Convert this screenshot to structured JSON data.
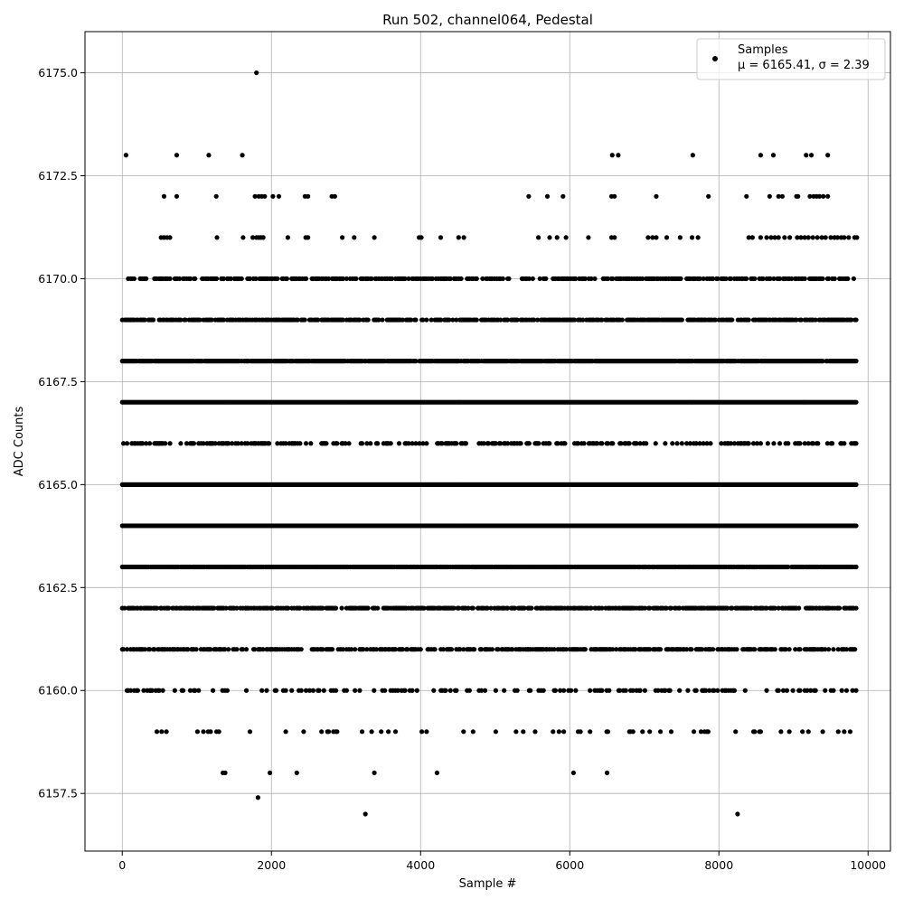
{
  "chart_data": {
    "type": "scatter",
    "title": "Run 502, channel064, Pedestal",
    "xlabel": "Sample #",
    "ylabel": "ADC Counts",
    "xlim": [
      -500,
      10300
    ],
    "ylim": [
      6156.1,
      6176.0
    ],
    "xticks": [
      0,
      2000,
      4000,
      6000,
      8000,
      10000
    ],
    "xtick_labels": [
      "0",
      "2000",
      "4000",
      "6000",
      "8000",
      "10000"
    ],
    "yticks": [
      6157.5,
      6160.0,
      6162.5,
      6165.0,
      6167.5,
      6170.0,
      6172.5,
      6175.0
    ],
    "ytick_labels": [
      "6157.5",
      "6160.0",
      "6162.5",
      "6165.0",
      "6167.5",
      "6170.0",
      "6172.5",
      "6175.0"
    ],
    "grid": true,
    "legend": {
      "position": "top-right",
      "entries": [
        {
          "line1": "Samples",
          "line2": "μ = 6165.41, σ = 2.39"
        }
      ]
    },
    "series": [
      {
        "name": "Samples",
        "marker_color": "#000000",
        "x_range": [
          0,
          9850
        ],
        "points": [
          [
            1800,
            6175
          ],
          [
            50,
            6173
          ],
          [
            730,
            6173
          ],
          [
            1160,
            6173
          ],
          [
            1610,
            6173
          ],
          [
            6570,
            6173
          ],
          [
            6650,
            6173
          ],
          [
            7650,
            6173
          ],
          [
            8560,
            6173
          ],
          [
            8730,
            6173
          ],
          [
            9170,
            6173
          ],
          [
            9240,
            6173
          ],
          [
            9460,
            6173
          ],
          [
            560,
            6172
          ],
          [
            730,
            6172
          ],
          [
            1260,
            6172
          ],
          [
            1780,
            6172
          ],
          [
            1830,
            6172
          ],
          [
            1870,
            6172
          ],
          [
            1910,
            6172
          ],
          [
            2020,
            6172
          ],
          [
            2100,
            6172
          ],
          [
            2450,
            6172
          ],
          [
            2490,
            6172
          ],
          [
            2810,
            6172
          ],
          [
            2850,
            6172
          ],
          [
            5450,
            6172
          ],
          [
            5700,
            6172
          ],
          [
            5910,
            6172
          ],
          [
            6560,
            6172
          ],
          [
            6600,
            6172
          ],
          [
            7160,
            6172
          ],
          [
            7860,
            6172
          ],
          [
            8370,
            6172
          ],
          [
            8680,
            6172
          ],
          [
            8800,
            6172
          ],
          [
            8850,
            6172
          ],
          [
            9040,
            6172
          ],
          [
            9060,
            6172
          ],
          [
            9220,
            6172
          ],
          [
            9270,
            6172
          ],
          [
            9310,
            6172
          ],
          [
            9350,
            6172
          ],
          [
            9400,
            6172
          ],
          [
            9460,
            6172
          ],
          [
            520,
            6171
          ],
          [
            560,
            6171
          ],
          [
            600,
            6171
          ],
          [
            640,
            6171
          ],
          [
            1270,
            6171
          ],
          [
            1620,
            6171
          ],
          [
            1750,
            6171
          ],
          [
            1800,
            6171
          ],
          [
            1830,
            6171
          ],
          [
            1860,
            6171
          ],
          [
            1890,
            6171
          ],
          [
            2220,
            6171
          ],
          [
            2460,
            6171
          ],
          [
            2490,
            6171
          ],
          [
            2950,
            6171
          ],
          [
            3110,
            6171
          ],
          [
            3380,
            6171
          ],
          [
            3980,
            6171
          ],
          [
            4010,
            6171
          ],
          [
            4270,
            6171
          ],
          [
            4510,
            6171
          ],
          [
            4580,
            6171
          ],
          [
            5580,
            6171
          ],
          [
            5730,
            6171
          ],
          [
            5830,
            6171
          ],
          [
            5950,
            6171
          ],
          [
            6250,
            6171
          ],
          [
            6560,
            6171
          ],
          [
            6600,
            6171
          ],
          [
            7050,
            6171
          ],
          [
            7110,
            6171
          ],
          [
            7160,
            6171
          ],
          [
            7300,
            6171
          ],
          [
            7480,
            6171
          ],
          [
            7640,
            6171
          ],
          [
            7720,
            6171
          ],
          [
            8400,
            6171
          ],
          [
            8450,
            6171
          ],
          [
            8560,
            6171
          ],
          [
            8640,
            6171
          ],
          [
            8700,
            6171
          ],
          [
            8750,
            6171
          ],
          [
            8800,
            6171
          ],
          [
            8880,
            6171
          ],
          [
            8950,
            6171
          ],
          [
            9050,
            6171
          ],
          [
            9100,
            6171
          ],
          [
            9150,
            6171
          ],
          [
            9200,
            6171
          ],
          [
            9260,
            6171
          ],
          [
            9320,
            6171
          ],
          [
            9380,
            6171
          ],
          [
            9430,
            6171
          ],
          [
            9500,
            6171
          ],
          [
            9550,
            6171
          ],
          [
            9590,
            6171
          ],
          [
            9640,
            6171
          ],
          [
            9680,
            6171
          ],
          [
            9740,
            6171
          ],
          [
            9820,
            6171
          ],
          [
            9850,
            6171
          ],
          [
            1820,
            6157.4
          ],
          [
            3260,
            6157
          ],
          [
            8250,
            6157
          ],
          [
            1350,
            6158
          ],
          [
            1380,
            6158
          ],
          [
            1980,
            6158
          ],
          [
            2340,
            6158
          ],
          [
            3380,
            6158
          ],
          [
            4220,
            6158
          ],
          [
            6050,
            6158
          ],
          [
            6500,
            6158
          ]
        ],
        "dense_bands": [
          {
            "y": 6170,
            "density": 0.55
          },
          {
            "y": 6169,
            "density": 0.7
          },
          {
            "y": 6168,
            "density": 0.95
          },
          {
            "y": 6167,
            "density": 1.0
          },
          {
            "y": 6166,
            "density": 0.35
          },
          {
            "y": 6165,
            "density": 1.0
          },
          {
            "y": 6164,
            "density": 1.0
          },
          {
            "y": 6163,
            "density": 0.95
          },
          {
            "y": 6162,
            "density": 0.7
          },
          {
            "y": 6161,
            "density": 0.55
          },
          {
            "y": 6160,
            "density": 0.25
          },
          {
            "y": 6159,
            "density": 0.1
          }
        ]
      }
    ]
  }
}
